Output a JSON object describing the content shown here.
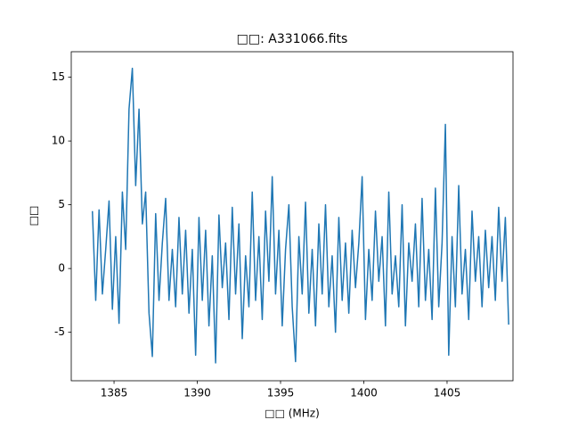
{
  "chart_data": {
    "type": "line",
    "title": "□□: A331066.fits",
    "x_label": "□□ (MHz)",
    "y_label": "□□",
    "xlim": [
      1382.43,
      1408.96
    ],
    "ylim": [
      -8.8,
      17.0
    ],
    "xticks": [
      1385,
      1390,
      1395,
      1400,
      1405
    ],
    "yticks": [
      -5,
      0,
      5,
      10,
      15
    ],
    "x": [
      1383.7,
      1383.9,
      1384.1,
      1384.3,
      1384.5,
      1384.7,
      1384.9,
      1385.1,
      1385.3,
      1385.5,
      1385.7,
      1385.9,
      1386.1,
      1386.3,
      1386.5,
      1386.7,
      1386.9,
      1387.1,
      1387.3,
      1387.5,
      1387.7,
      1387.9,
      1388.1,
      1388.3,
      1388.5,
      1388.7,
      1388.9,
      1389.1,
      1389.3,
      1389.5,
      1389.7,
      1389.9,
      1390.1,
      1390.3,
      1390.5,
      1390.7,
      1390.9,
      1391.1,
      1391.3,
      1391.5,
      1391.7,
      1391.9,
      1392.1,
      1392.3,
      1392.5,
      1392.7,
      1392.9,
      1393.1,
      1393.3,
      1393.5,
      1393.7,
      1393.9,
      1394.1,
      1394.3,
      1394.5,
      1394.7,
      1394.9,
      1395.1,
      1395.3,
      1395.5,
      1395.7,
      1395.9,
      1396.1,
      1396.3,
      1396.5,
      1396.7,
      1396.9,
      1397.1,
      1397.3,
      1397.5,
      1397.7,
      1397.9,
      1398.1,
      1398.3,
      1398.5,
      1398.7,
      1398.9,
      1399.1,
      1399.3,
      1399.5,
      1399.7,
      1399.9,
      1400.1,
      1400.3,
      1400.5,
      1400.7,
      1400.9,
      1401.1,
      1401.3,
      1401.5,
      1401.7,
      1401.9,
      1402.1,
      1402.3,
      1402.5,
      1402.7,
      1402.9,
      1403.1,
      1403.3,
      1403.5,
      1403.7,
      1403.9,
      1404.1,
      1404.3,
      1404.5,
      1404.7,
      1404.9,
      1405.1,
      1405.3,
      1405.5,
      1405.7,
      1405.9,
      1406.1,
      1406.3,
      1406.5,
      1406.7,
      1406.9,
      1407.1,
      1407.3,
      1407.5,
      1407.7,
      1407.9,
      1408.1,
      1408.3,
      1408.5,
      1408.7
    ],
    "series": [
      {
        "color": "#1f77b4",
        "values": [
          4.5,
          -2.5,
          4.6,
          -2.0,
          1.5,
          5.3,
          -3.2,
          2.5,
          -4.3,
          6.0,
          1.5,
          12.5,
          15.7,
          6.5,
          12.5,
          3.5,
          6.0,
          -3.5,
          -6.9,
          4.3,
          -2.5,
          2.0,
          5.5,
          -2.5,
          1.5,
          -3.0,
          4.0,
          -2.0,
          3.0,
          -3.5,
          1.5,
          -6.8,
          4.0,
          -2.5,
          3.0,
          -4.5,
          1.0,
          -7.4,
          4.2,
          -1.5,
          2.0,
          -4.0,
          4.8,
          -2.0,
          3.5,
          -5.5,
          1.0,
          -3.0,
          6.0,
          -2.5,
          2.5,
          -4.0,
          4.5,
          -1.0,
          7.2,
          -2.0,
          3.0,
          -4.5,
          1.5,
          5.0,
          -3.0,
          -7.3,
          2.5,
          -2.0,
          5.2,
          -3.5,
          1.5,
          -4.5,
          3.5,
          -2.0,
          5.0,
          -3.0,
          1.0,
          -5.0,
          4.0,
          -2.5,
          2.0,
          -3.5,
          3.0,
          -1.5,
          2.0,
          7.2,
          -4.0,
          1.5,
          -2.5,
          4.5,
          -1.0,
          2.5,
          -4.5,
          6.0,
          -2.0,
          1.0,
          -3.0,
          5.0,
          -4.5,
          2.0,
          -1.0,
          3.5,
          -3.0,
          5.5,
          -2.5,
          1.5,
          -4.0,
          6.3,
          -3.0,
          2.0,
          11.3,
          -6.8,
          2.5,
          -3.0,
          6.5,
          -2.0,
          1.5,
          -4.0,
          4.5,
          -1.0,
          2.5,
          -3.0,
          3.0,
          -1.5,
          2.5,
          -2.5,
          4.8,
          -1.0,
          4.0,
          -4.4
        ]
      }
    ]
  }
}
